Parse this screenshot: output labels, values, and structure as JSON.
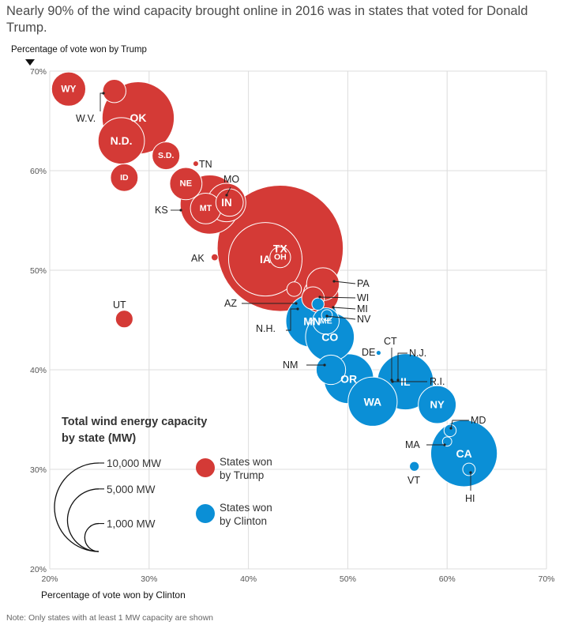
{
  "title": "Nearly 90% of the wind capacity brought online in 2016 was in states that voted for Donald Trump.",
  "note": "Note: Only states with at least 1 MW capacity are shown",
  "colors": {
    "trump": "#d43a36",
    "clinton": "#0b8fd6",
    "grid": "#dcdcdc",
    "point_trump": "#d43a36"
  },
  "chart_data": {
    "type": "scatter",
    "title": "Nearly 90% of the wind capacity brought online in 2016 was in states that voted for Donald Trump.",
    "xlabel": "Percentage of vote won by Clinton",
    "ylabel": "Percentage of vote won by Trump",
    "xlim": [
      20,
      70
    ],
    "ylim": [
      20,
      70
    ],
    "xticks": [
      "20%",
      "30%",
      "40%",
      "50%",
      "60%",
      "70%"
    ],
    "yticks": [
      "20%",
      "30%",
      "40%",
      "50%",
      "60%",
      "70%"
    ],
    "size_variable": "Wind energy capacity (MW)",
    "legend_title": "Total wind energy capacity by state (MW)",
    "legend_sizes": [
      {
        "label": "10,000 MW",
        "mw": 10000
      },
      {
        "label": "5,000 MW",
        "mw": 5000
      },
      {
        "label": "1,000 MW",
        "mw": 1000
      }
    ],
    "legend_colors": [
      {
        "label": "States won by Trump",
        "winner": "trump"
      },
      {
        "label": "States won by Clinton",
        "winner": "clinton"
      }
    ],
    "states": [
      {
        "code": "TX",
        "clinton": 43.2,
        "trump": 52.2,
        "mw": 20300,
        "winner": "trump",
        "label": "inside"
      },
      {
        "code": "OK",
        "clinton": 28.9,
        "trump": 65.3,
        "mw": 6650,
        "winner": "trump",
        "label": "inside"
      },
      {
        "code": "IA",
        "clinton": 41.7,
        "trump": 51.1,
        "mw": 6900,
        "winner": "trump",
        "label": "inside"
      },
      {
        "code": "KS",
        "clinton": 36.1,
        "trump": 56.6,
        "mw": 4450,
        "winner": "trump",
        "label": "outside"
      },
      {
        "code": "MN",
        "clinton": 46.4,
        "trump": 44.9,
        "mw": 3500,
        "winner": "clinton",
        "label": "inside"
      },
      {
        "code": "CA",
        "clinton": 61.7,
        "trump": 31.6,
        "mw": 5660,
        "winner": "clinton",
        "label": "inside"
      },
      {
        "code": "IL",
        "clinton": 55.8,
        "trump": 38.8,
        "mw": 4020,
        "winner": "clinton",
        "label": "inside"
      },
      {
        "code": "OR",
        "clinton": 50.1,
        "trump": 39.1,
        "mw": 3150,
        "winner": "clinton",
        "label": "inside"
      },
      {
        "code": "WA",
        "clinton": 52.5,
        "trump": 36.8,
        "mw": 3080,
        "winner": "clinton",
        "label": "inside"
      },
      {
        "code": "CO",
        "clinton": 48.2,
        "trump": 43.3,
        "mw": 3030,
        "winner": "clinton",
        "label": "inside"
      },
      {
        "code": "N.D.",
        "clinton": 27.2,
        "trump": 63.0,
        "mw": 2750,
        "winner": "trump",
        "label": "inside"
      },
      {
        "code": "IN",
        "clinton": 37.8,
        "trump": 56.8,
        "mw": 1890,
        "winner": "trump",
        "label": "inside"
      },
      {
        "code": "NY",
        "clinton": 59.0,
        "trump": 36.5,
        "mw": 1830,
        "winner": "clinton",
        "label": "inside"
      },
      {
        "code": "PA",
        "clinton": 47.5,
        "trump": 48.6,
        "mw": 1370,
        "winner": "trump",
        "label": "outside"
      },
      {
        "code": "MT",
        "clinton": 35.7,
        "trump": 56.2,
        "mw": 1200,
        "winner": "trump",
        "label": "inside"
      },
      {
        "code": "WY",
        "clinton": 21.9,
        "trump": 68.2,
        "mw": 1490,
        "winner": "trump",
        "label": "inside"
      },
      {
        "code": "NE",
        "clinton": 33.7,
        "trump": 58.7,
        "mw": 1330,
        "winner": "trump",
        "label": "inside"
      },
      {
        "code": "S.D.",
        "clinton": 31.7,
        "trump": 61.5,
        "mw": 980,
        "winner": "trump",
        "label": "inside"
      },
      {
        "code": "ID",
        "clinton": 27.5,
        "trump": 59.3,
        "mw": 970,
        "winner": "trump",
        "label": "inside"
      },
      {
        "code": "UT",
        "clinton": 27.5,
        "trump": 45.1,
        "mw": 390,
        "winner": "trump",
        "label": "outside"
      },
      {
        "code": "W.V.",
        "clinton": 26.5,
        "trump": 68.0,
        "mw": 690,
        "winner": "trump",
        "label": "outside"
      },
      {
        "code": "MO",
        "clinton": 38.1,
        "trump": 56.8,
        "mw": 960,
        "winner": "trump",
        "label": "outside"
      },
      {
        "code": "WI",
        "clinton": 46.5,
        "trump": 47.2,
        "mw": 650,
        "winner": "trump",
        "label": "outside"
      },
      {
        "code": "MI",
        "clinton": 47.3,
        "trump": 47.5,
        "mw": 1610,
        "winner": "trump",
        "label": "outside"
      },
      {
        "code": "OH",
        "clinton": 43.2,
        "trump": 51.3,
        "mw": 550,
        "winner": "trump",
        "label": "inside"
      },
      {
        "code": "ME",
        "clinton": 47.8,
        "trump": 44.9,
        "mw": 900,
        "winner": "clinton",
        "label": "inside"
      },
      {
        "code": "NM",
        "clinton": 48.3,
        "trump": 40.0,
        "mw": 1110,
        "winner": "clinton",
        "label": "outside"
      },
      {
        "code": "NV",
        "clinton": 47.9,
        "trump": 45.5,
        "mw": 150,
        "winner": "clinton",
        "label": "outside"
      },
      {
        "code": "N.H.",
        "clinton": 47.0,
        "trump": 46.6,
        "mw": 190,
        "winner": "clinton",
        "label": "outside"
      },
      {
        "code": "AZ",
        "clinton": 44.6,
        "trump": 48.1,
        "mw": 270,
        "winner": "trump",
        "label": "outside"
      },
      {
        "code": "MD",
        "clinton": 60.3,
        "trump": 33.9,
        "mw": 190,
        "winner": "clinton",
        "label": "outside"
      },
      {
        "code": "MA",
        "clinton": 60.0,
        "trump": 32.8,
        "mw": 110,
        "winner": "clinton",
        "label": "outside"
      },
      {
        "code": "HI",
        "clinton": 62.2,
        "trump": 30.0,
        "mw": 200,
        "winner": "clinton",
        "label": "outside"
      },
      {
        "code": "VT",
        "clinton": 56.7,
        "trump": 30.3,
        "mw": 120,
        "winner": "clinton",
        "label": "outside"
      },
      {
        "code": "R.I.",
        "clinton": 54.4,
        "trump": 38.9,
        "mw": 9,
        "winner": "clinton",
        "label": "outside"
      },
      {
        "code": "N.J.",
        "clinton": 55.0,
        "trump": 41.0,
        "mw": 9,
        "winner": "clinton",
        "label": "outside"
      },
      {
        "code": "CT",
        "clinton": 54.6,
        "trump": 40.9,
        "mw": 5,
        "winner": "clinton",
        "label": "outside"
      },
      {
        "code": "DE",
        "clinton": 53.1,
        "trump": 41.7,
        "mw": 2,
        "winner": "clinton",
        "label": "outside"
      },
      {
        "code": "AK",
        "clinton": 36.6,
        "trump": 51.3,
        "mw": 62,
        "winner": "trump",
        "label": "outside"
      },
      {
        "code": "TN",
        "clinton": 34.7,
        "trump": 60.7,
        "mw": 29,
        "winner": "trump",
        "label": "outside"
      }
    ]
  }
}
